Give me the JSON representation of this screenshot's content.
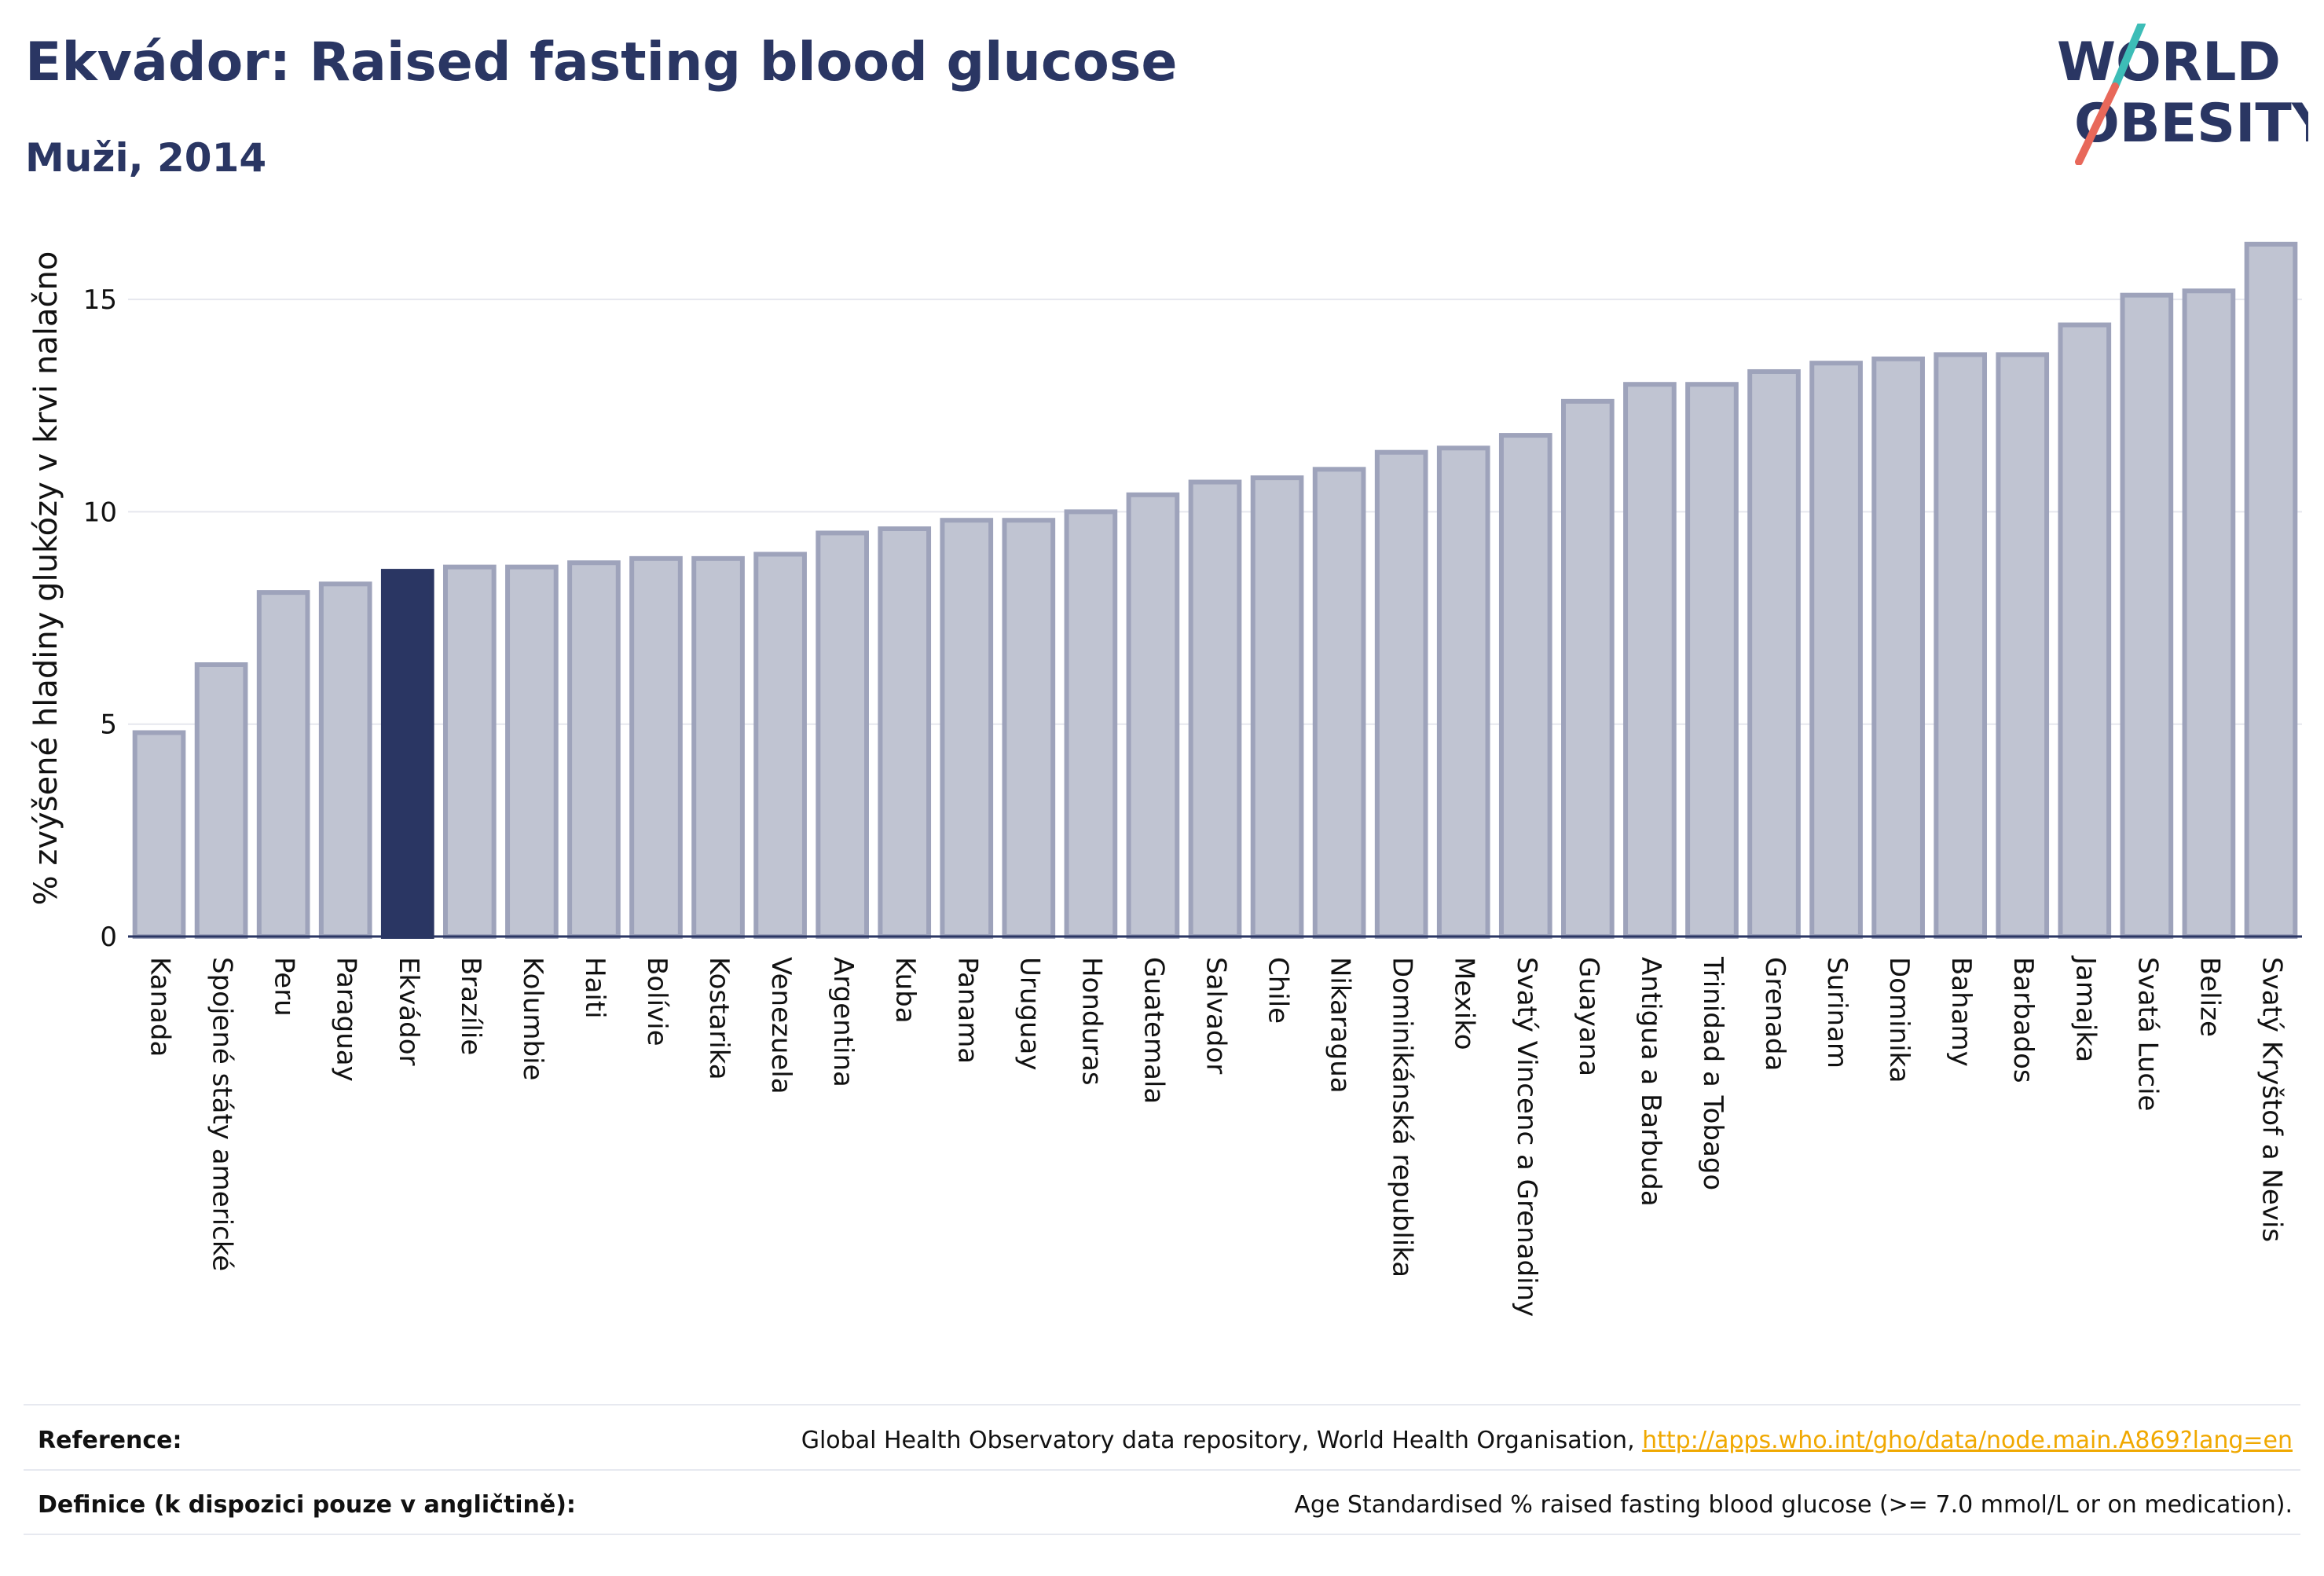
{
  "header": {
    "title": "Ekvádor: Raised fasting blood glucose",
    "subtitle": "Muži, 2014"
  },
  "logo": {
    "line1": "WORLD",
    "line2": "OBESITY",
    "colors": {
      "text": "#2a3663",
      "slash_teal": "#3dbdb7",
      "slash_red": "#e8685a"
    }
  },
  "colors": {
    "bar_fill": "#c0c4d2",
    "bar_stroke": "#9ea3bb",
    "highlight": "#2a3663",
    "grid": "#e6e7ee",
    "axis": "#2a3663"
  },
  "chart_data": {
    "type": "bar",
    "title": "Ekvádor: Raised fasting blood glucose",
    "subtitle": "Muži, 2014",
    "xlabel": "",
    "ylabel": "% zvýšené hladiny glukózy v krvi nalačno",
    "ylim": [
      0,
      16.5
    ],
    "yticks": [
      0,
      5,
      10,
      15
    ],
    "grid": true,
    "highlight_category": "Ekvádor",
    "categories": [
      "Kanada",
      "Spojené státy americké",
      "Peru",
      "Paraguay",
      "Ekvádor",
      "Brazílie",
      "Kolumbie",
      "Haiti",
      "Bolívie",
      "Kostarika",
      "Venezuela",
      "Argentina",
      "Kuba",
      "Panama",
      "Uruguay",
      "Honduras",
      "Guatemala",
      "Salvador",
      "Chile",
      "Nikaragua",
      "Dominikánská republika",
      "Mexiko",
      "Svatý Vincenc a Grenadiny",
      "Guayana",
      "Antigua a Barbuda",
      "Trinidad a Tobago",
      "Grenada",
      "Surinam",
      "Dominika",
      "Bahamy",
      "Barbados",
      "Jamajka",
      "Svatá Lucie",
      "Belize",
      "Svatý Kryštof a Nevis"
    ],
    "values": [
      4.8,
      6.4,
      8.1,
      8.3,
      8.6,
      8.7,
      8.7,
      8.8,
      8.9,
      8.9,
      9.0,
      9.5,
      9.6,
      9.8,
      9.8,
      10.0,
      10.4,
      10.7,
      10.8,
      11.0,
      11.4,
      11.5,
      11.8,
      12.6,
      13.0,
      13.0,
      13.3,
      13.5,
      13.6,
      13.7,
      13.7,
      14.4,
      15.1,
      15.2,
      16.3
    ]
  },
  "footer": {
    "reference_label": "Reference:",
    "reference_text": "Global Health Observatory data repository, World Health Organisation, ",
    "reference_link": "http://apps.who.int/gho/data/node.main.A869?lang=en",
    "definition_label": "Definice (k dispozici pouze v angličtině):",
    "definition_text": "Age Standardised % raised fasting blood glucose (>= 7.0 mmol/L or on medication)."
  }
}
